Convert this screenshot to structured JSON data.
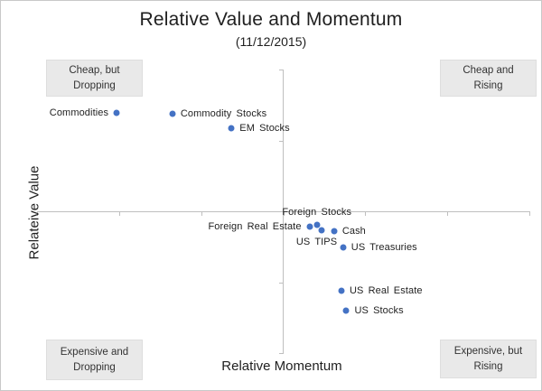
{
  "window": {
    "background": "#ffffff",
    "border_color": "#c9c9c9"
  },
  "chart_data": {
    "type": "scatter",
    "title": "Relative Value and Momentum",
    "subtitle": "(11/12/2015)",
    "xlabel": "Relative Momentum",
    "ylabel": "Relateive Value",
    "xlim": [
      -3,
      3
    ],
    "ylim": [
      -2,
      2
    ],
    "x_tick_step": 1,
    "y_tick_step": 1,
    "grid": false,
    "legend": "none",
    "marker_color": "#4472c4",
    "axis_color": "#bfbfbf",
    "points": [
      {
        "label": "Commodities",
        "x": -2.03,
        "y": 1.39,
        "label_side": "left"
      },
      {
        "label": "Commodity Stocks",
        "x": -1.35,
        "y": 1.38,
        "label_side": "right"
      },
      {
        "label": "EM Stocks",
        "x": -0.63,
        "y": 1.17,
        "label_side": "right"
      },
      {
        "label": "Foreign Stocks",
        "x": 0.41,
        "y": -0.19,
        "label_side": "above"
      },
      {
        "label": "Foreign Real Estate",
        "x": 0.32,
        "y": -0.22,
        "label_side": "left"
      },
      {
        "label": "US TIPS",
        "x": 0.47,
        "y": -0.27,
        "label_side": "below-left"
      },
      {
        "label": "Cash",
        "x": 0.62,
        "y": -0.28,
        "label_side": "right"
      },
      {
        "label": "US Treasuries",
        "x": 0.73,
        "y": -0.51,
        "label_side": "right"
      },
      {
        "label": "US Real Estate",
        "x": 0.71,
        "y": -1.12,
        "label_side": "right"
      },
      {
        "label": "US Stocks",
        "x": 0.77,
        "y": -1.4,
        "label_side": "right"
      }
    ],
    "quadrant_labels": {
      "top_left": {
        "line1": "Cheap, but",
        "line2": "Dropping"
      },
      "top_right": {
        "line1": "Cheap and",
        "line2": "Rising"
      },
      "bottom_left": {
        "line1": "Expensive and",
        "line2": "Dropping"
      },
      "bottom_right": {
        "line1": "Expensive, but",
        "line2": "Rising"
      }
    }
  }
}
